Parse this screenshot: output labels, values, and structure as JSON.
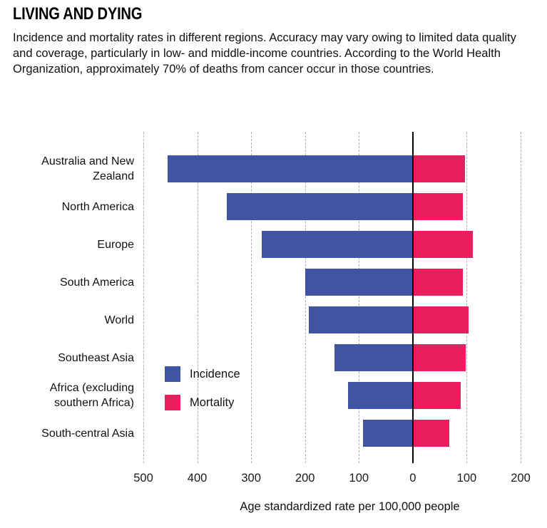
{
  "chart_data": {
    "type": "bar",
    "orientation": "diverging-horizontal",
    "title": "LIVING AND DYING",
    "subtitle": "Incidence and mortality rates in different regions. Accuracy may vary owing to limited data quality and coverage, particularly in low- and middle-income countries.  According to the World Health Organization, approximately 70% of deaths from cancer occur in those countries.",
    "categories": [
      "Australia and New Zealand",
      "North America",
      "Europe",
      "South America",
      "World",
      "Southeast Asia",
      "Africa (excluding southern Africa)",
      "South-central Asia"
    ],
    "series": [
      {
        "name": "Incidence",
        "color": "#4153a3",
        "direction": "left",
        "values": [
          455,
          345,
          280,
          200,
          193,
          145,
          120,
          93
        ]
      },
      {
        "name": "Mortality",
        "color": "#e91e5e",
        "direction": "right",
        "values": [
          95,
          92,
          110,
          92,
          102,
          97,
          88,
          67
        ]
      }
    ],
    "x_axis": {
      "label": "Age standardized rate per 100,000 people",
      "left_max": 500,
      "right_max": 200,
      "tick_interval": 100,
      "tick_labels": [
        "500",
        "400",
        "300",
        "200",
        "100",
        "0",
        "100",
        "200"
      ],
      "grid_style": "dashed",
      "zero_line_color": "#000000"
    },
    "legend_position": "middle-left"
  }
}
